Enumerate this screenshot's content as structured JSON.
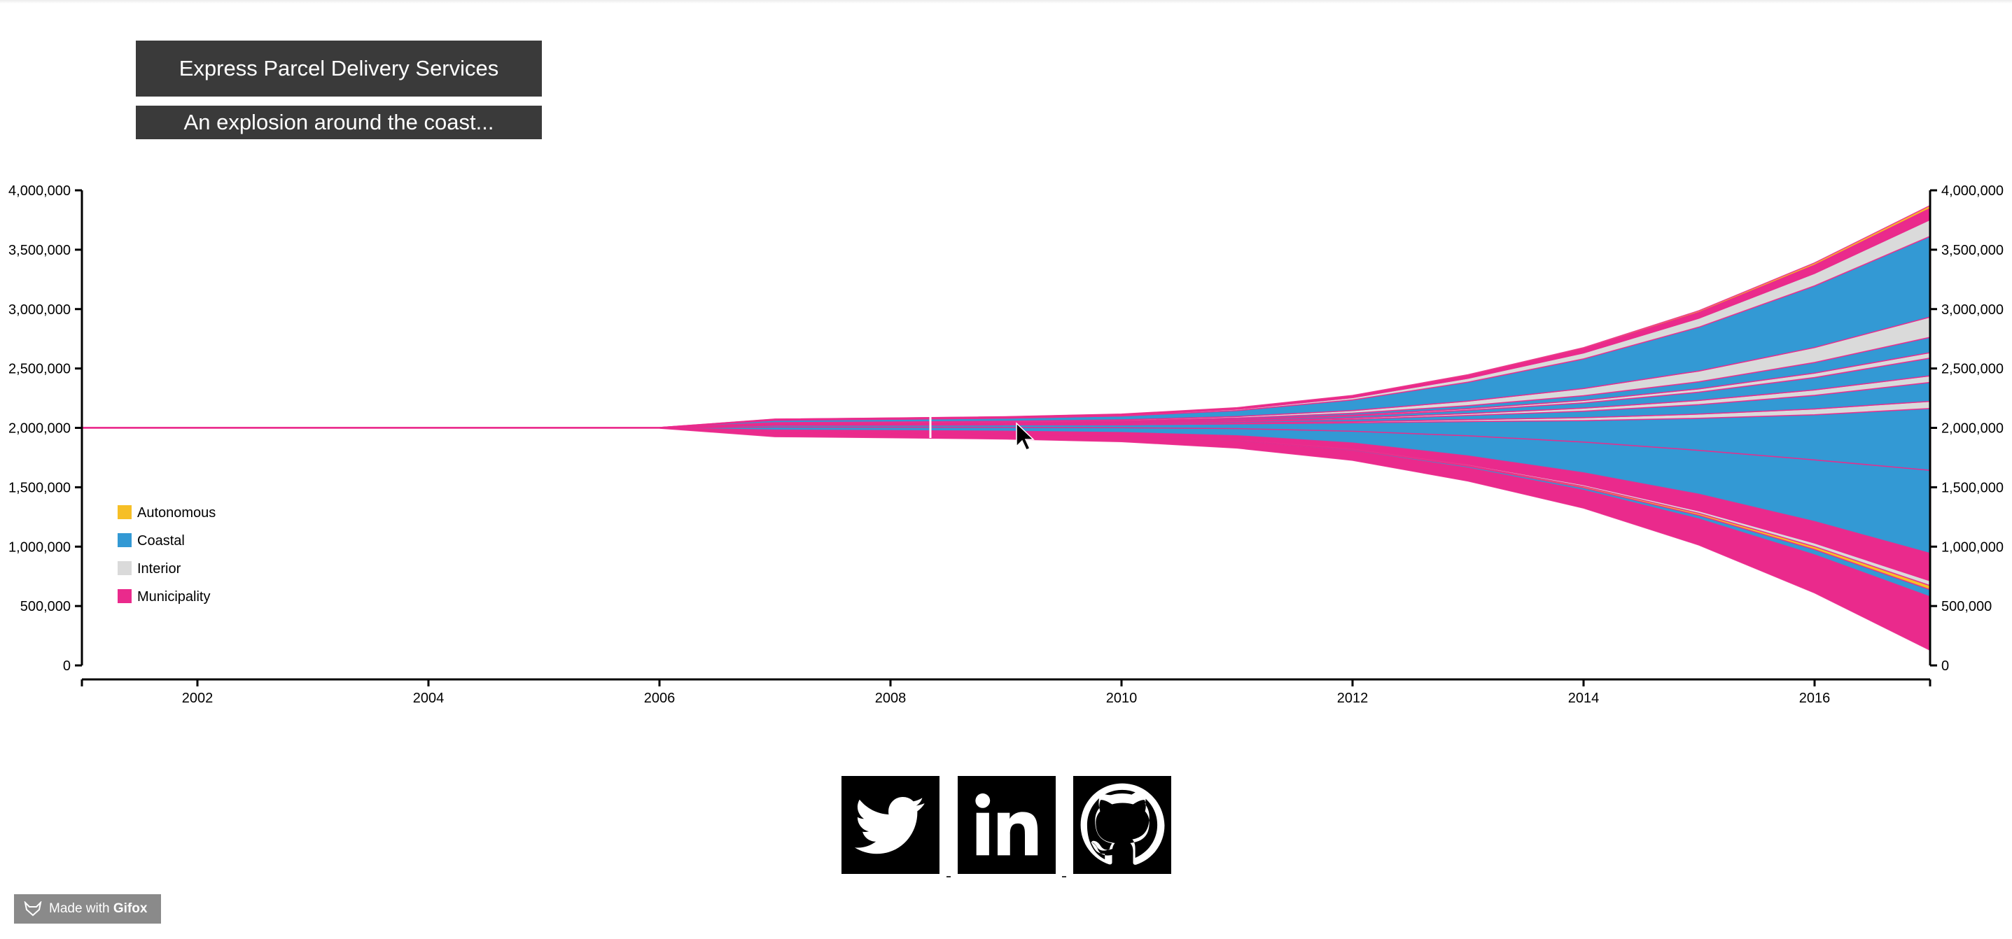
{
  "title": "Express Parcel Delivery Services",
  "subtitle": "An explosion around the coast...",
  "watermark": {
    "prefix": "Made with",
    "brand": "Gifox"
  },
  "social": [
    {
      "name": "twitter",
      "icon": "twitter-icon"
    },
    {
      "name": "linkedin",
      "icon": "linkedin-icon"
    },
    {
      "name": "github",
      "icon": "github-icon"
    }
  ],
  "chart_data": {
    "type": "area",
    "subtype": "stacked-streamgraph",
    "x_domain": [
      2001,
      2017
    ],
    "x_ticks": [
      "2002",
      "2004",
      "2006",
      "2008",
      "2010",
      "2012",
      "2014",
      "2016"
    ],
    "y_domain": [
      0,
      4000000
    ],
    "y_ticks": [
      "0",
      "500,000",
      "1,000,000",
      "1,500,000",
      "2,000,000",
      "2,500,000",
      "3,000,000",
      "3,500,000",
      "4,000,000"
    ],
    "baseline_center": 2000000,
    "legend_position": "left",
    "legend": [
      {
        "label": "Autonomous",
        "color": "#f6bf26"
      },
      {
        "label": "Coastal",
        "color": "#3399d4"
      },
      {
        "label": "Interior",
        "color": "#dadada"
      },
      {
        "label": "Municipality",
        "color": "#ea2a8c"
      }
    ],
    "stroke_color": "#ea2a8c",
    "x": [
      2001,
      2006,
      2007,
      2008,
      2009,
      2010,
      2011,
      2012,
      2013,
      2014,
      2015,
      2016,
      2017
    ],
    "series": [
      {
        "category": "Municipality",
        "values": [
          1000,
          1000,
          35000,
          38000,
          40000,
          45000,
          60000,
          80000,
          110000,
          150000,
          220000,
          320000,
          450000
        ]
      },
      {
        "category": "Coastal",
        "values": [
          200,
          200,
          3000,
          3000,
          4000,
          5000,
          7000,
          10000,
          14000,
          20000,
          30000,
          45000,
          60000
        ]
      },
      {
        "category": "Autonomous",
        "values": [
          100,
          100,
          1000,
          1000,
          1500,
          2000,
          3000,
          5000,
          8000,
          12000,
          18000,
          25000,
          35000
        ]
      },
      {
        "category": "Interior",
        "values": [
          100,
          100,
          2000,
          2000,
          2500,
          3000,
          4000,
          6000,
          9000,
          14000,
          20000,
          30000,
          40000
        ]
      },
      {
        "category": "Municipality",
        "values": [
          500,
          500,
          15000,
          17000,
          19000,
          22000,
          30000,
          45000,
          70000,
          100000,
          140000,
          180000,
          230000
        ]
      },
      {
        "category": "Coastal",
        "values": [
          1000,
          1000,
          25000,
          28000,
          32000,
          40000,
          60000,
          100000,
          170000,
          260000,
          370000,
          520000,
          700000
        ]
      },
      {
        "category": "Coastal",
        "values": [
          500,
          500,
          15000,
          17000,
          20000,
          25000,
          40000,
          70000,
          120000,
          180000,
          270000,
          380000,
          520000
        ]
      },
      {
        "category": "Interior",
        "values": [
          100,
          100,
          2000,
          2500,
          3000,
          4000,
          6000,
          10000,
          16000,
          25000,
          35000,
          48000,
          60000
        ]
      },
      {
        "category": "Coastal",
        "values": [
          200,
          200,
          4000,
          5000,
          6000,
          8000,
          12000,
          20000,
          35000,
          55000,
          80000,
          115000,
          160000
        ]
      },
      {
        "category": "Interior",
        "values": [
          100,
          100,
          2000,
          2500,
          3000,
          4000,
          6000,
          10000,
          16000,
          25000,
          35000,
          45000,
          55000
        ]
      },
      {
        "category": "Coastal",
        "values": [
          200,
          200,
          3000,
          4000,
          5000,
          7000,
          10000,
          17000,
          28000,
          45000,
          70000,
          105000,
          150000
        ]
      },
      {
        "category": "Interior",
        "values": [
          100,
          100,
          2000,
          2000,
          2500,
          3000,
          5000,
          8000,
          13000,
          20000,
          28000,
          37000,
          45000
        ]
      },
      {
        "category": "Coastal",
        "values": [
          200,
          200,
          4000,
          4500,
          5000,
          7000,
          10000,
          16000,
          26000,
          40000,
          60000,
          90000,
          130000
        ]
      },
      {
        "category": "Interior",
        "values": [
          300,
          300,
          5000,
          6000,
          7000,
          9000,
          13000,
          22000,
          38000,
          60000,
          90000,
          125000,
          170000
        ]
      },
      {
        "category": "Coastal",
        "values": [
          1000,
          1000,
          20000,
          23000,
          26000,
          32000,
          50000,
          90000,
          160000,
          250000,
          370000,
          520000,
          680000
        ]
      },
      {
        "category": "Interior",
        "values": [
          200,
          200,
          4000,
          4500,
          5000,
          7000,
          11000,
          19000,
          32000,
          50000,
          75000,
          105000,
          140000
        ]
      },
      {
        "category": "Municipality",
        "values": [
          200,
          200,
          5000,
          5500,
          6000,
          7000,
          10000,
          15000,
          24000,
          35000,
          50000,
          70000,
          95000
        ]
      },
      {
        "category": "Autonomous",
        "values": [
          100,
          100,
          1000,
          1000,
          1500,
          2000,
          3000,
          4000,
          6000,
          9000,
          13000,
          18000,
          24000
        ]
      }
    ]
  }
}
